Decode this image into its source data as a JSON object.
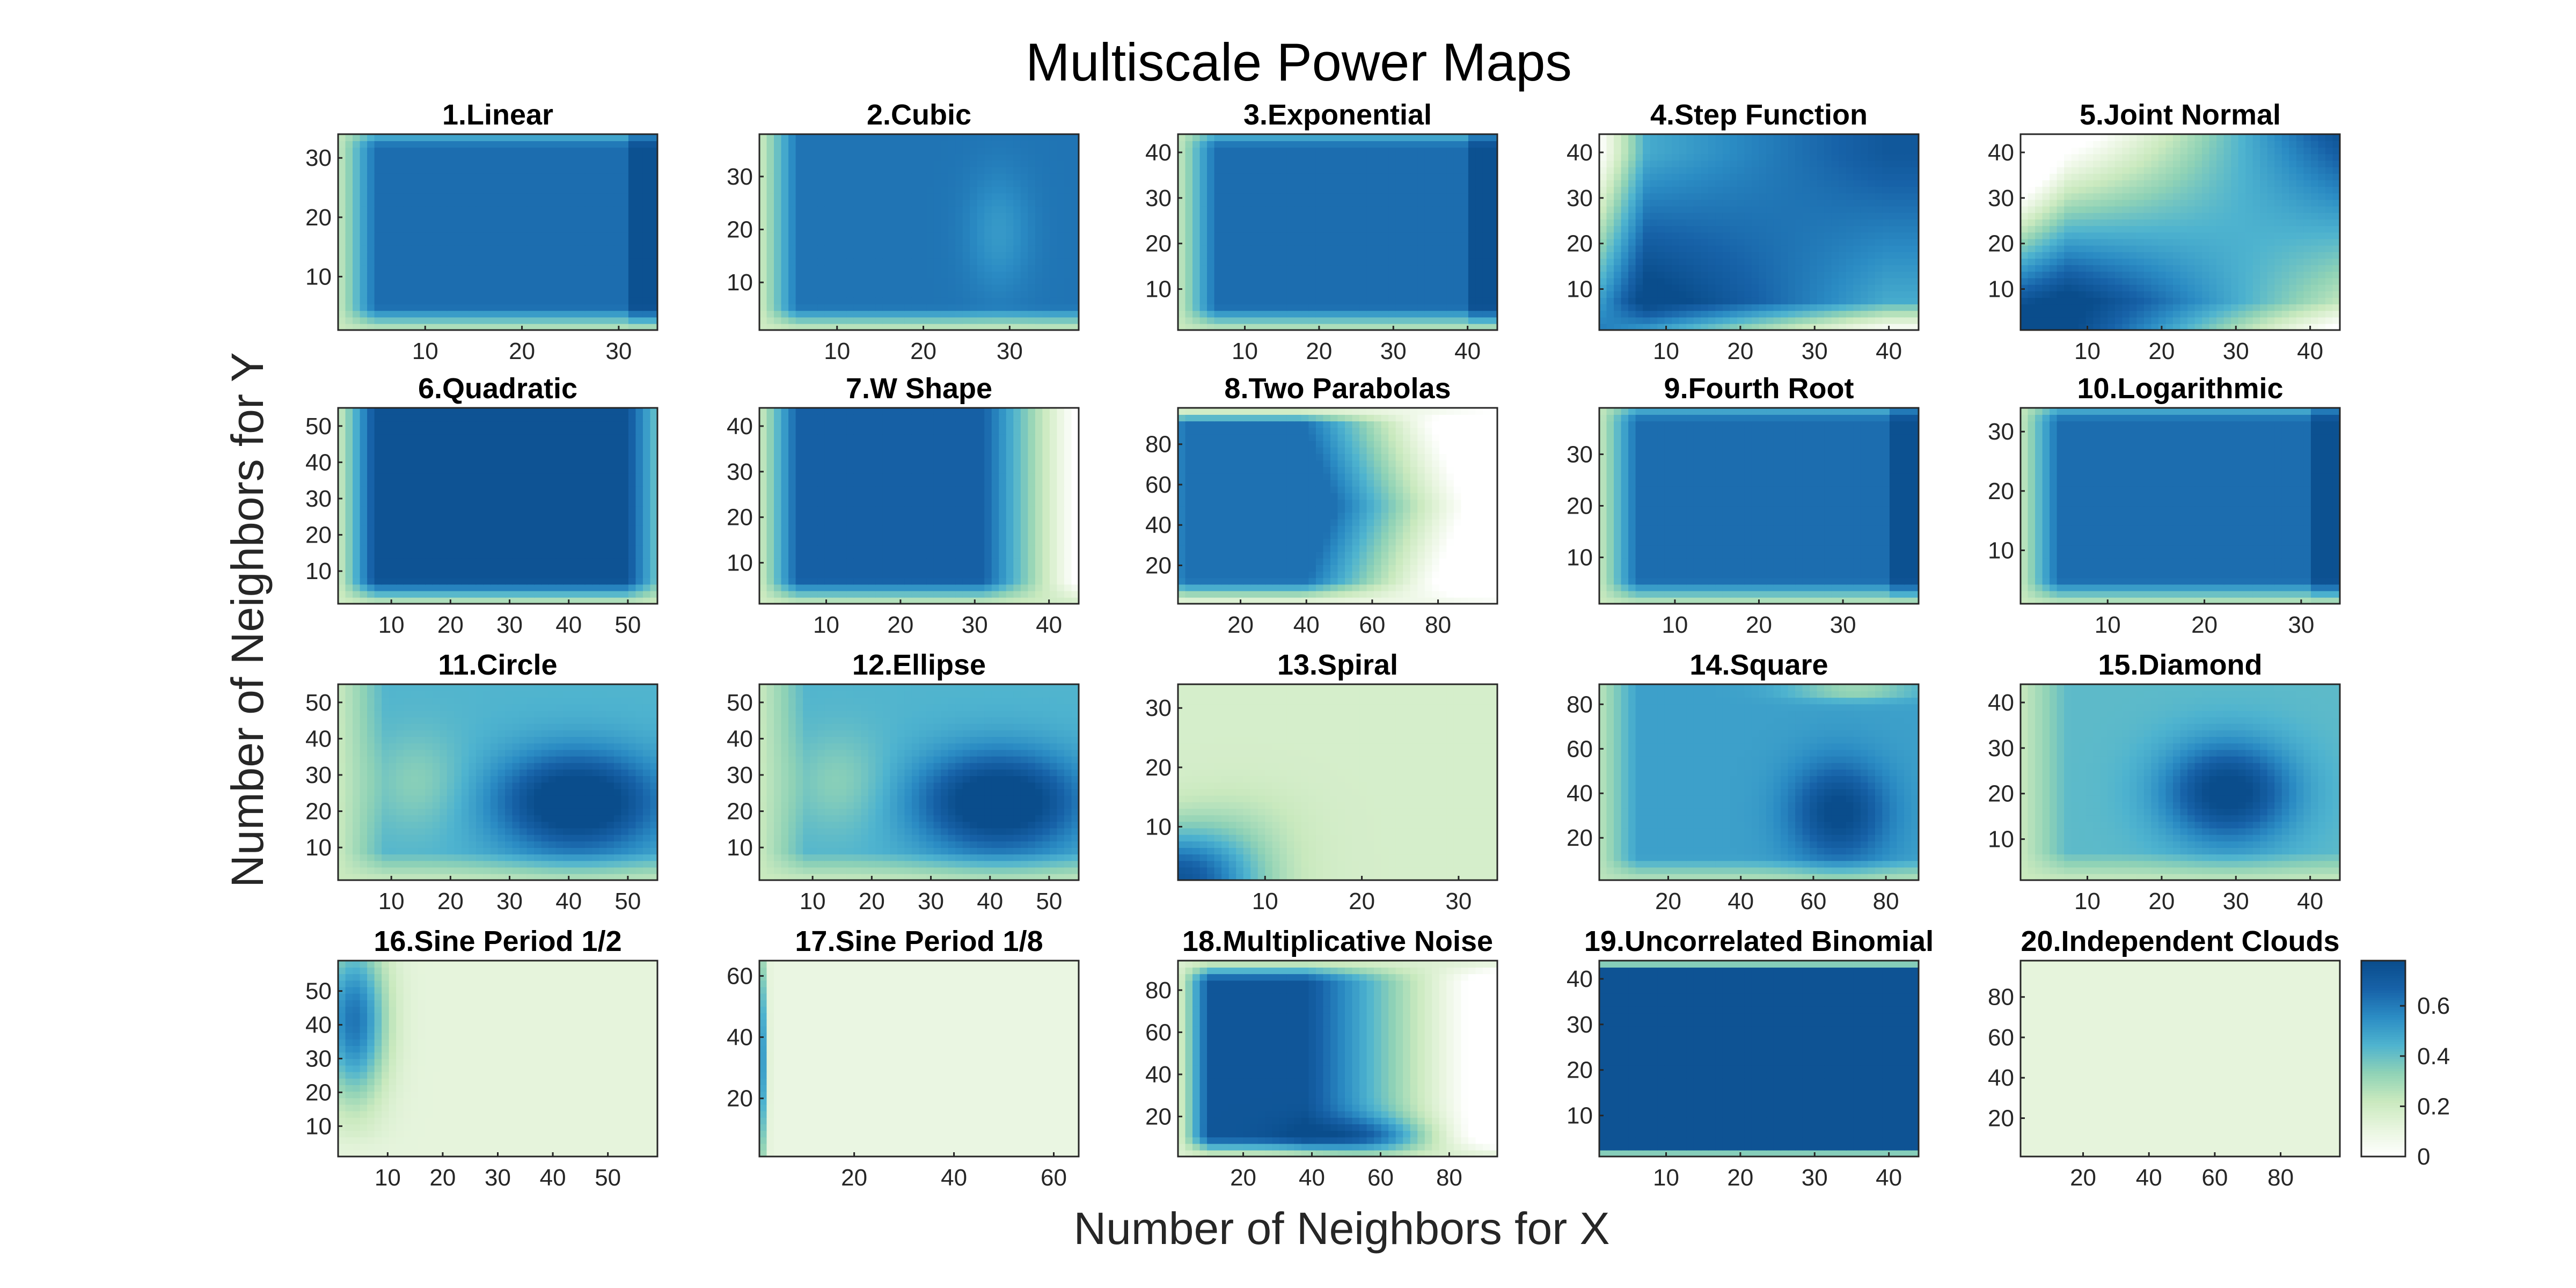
{
  "figure": {
    "title": "Multiscale Power Maps",
    "xlabel": "Number of Neighbors for X",
    "ylabel": "Number of Neighbors for Y"
  },
  "colors": {
    "colormap": [
      "#ffffff",
      "#e8f5df",
      "#c9e9be",
      "#8fd2b6",
      "#4eb3cf",
      "#2b8cc4",
      "#1762a8",
      "#0a4d8c"
    ],
    "frame": "#262626"
  },
  "colorbar": {
    "ticks": [
      0,
      0.2,
      0.4,
      0.6
    ],
    "labels": [
      "0",
      "0.2",
      "0.4",
      "0.6"
    ],
    "range": [
      0,
      0.78
    ]
  },
  "chart_data": [
    {
      "type": "heatmap",
      "title": "1.Linear",
      "xlim": [
        1,
        34
      ],
      "ylim": [
        1,
        34
      ],
      "xticks": [
        10,
        20,
        30
      ],
      "yticks": [
        10,
        20,
        30
      ],
      "pattern": "smooth"
    },
    {
      "type": "heatmap",
      "title": "2.Cubic",
      "xlim": [
        1,
        38
      ],
      "ylim": [
        1,
        38
      ],
      "xticks": [
        10,
        20,
        30
      ],
      "yticks": [
        10,
        20,
        30
      ],
      "pattern": "cubic"
    },
    {
      "type": "heatmap",
      "title": "3.Exponential",
      "xlim": [
        1,
        44
      ],
      "ylim": [
        1,
        44
      ],
      "xticks": [
        10,
        20,
        30,
        40
      ],
      "yticks": [
        10,
        20,
        30,
        40
      ],
      "pattern": "smooth"
    },
    {
      "type": "heatmap",
      "title": "4.Step Function",
      "xlim": [
        1,
        44
      ],
      "ylim": [
        1,
        44
      ],
      "xticks": [
        10,
        20,
        30,
        40
      ],
      "yticks": [
        10,
        20,
        30,
        40
      ],
      "pattern": "step"
    },
    {
      "type": "heatmap",
      "title": "5.Joint Normal",
      "xlim": [
        1,
        44
      ],
      "ylim": [
        1,
        44
      ],
      "xticks": [
        10,
        20,
        30,
        40
      ],
      "yticks": [
        10,
        20,
        30,
        40
      ],
      "pattern": "joint"
    },
    {
      "type": "heatmap",
      "title": "6.Quadratic",
      "xlim": [
        1,
        55
      ],
      "ylim": [
        1,
        55
      ],
      "xticks": [
        10,
        20,
        30,
        40,
        50
      ],
      "yticks": [
        10,
        20,
        30,
        40,
        50
      ],
      "pattern": "quadratic"
    },
    {
      "type": "heatmap",
      "title": "7.W Shape",
      "xlim": [
        1,
        44
      ],
      "ylim": [
        1,
        44
      ],
      "xticks": [
        10,
        20,
        30,
        40
      ],
      "yticks": [
        10,
        20,
        30,
        40
      ],
      "pattern": "wshape"
    },
    {
      "type": "heatmap",
      "title": "8.Two Parabolas",
      "xlim": [
        1,
        98
      ],
      "ylim": [
        1,
        98
      ],
      "xticks": [
        20,
        40,
        60,
        80
      ],
      "yticks": [
        20,
        40,
        60,
        80
      ],
      "pattern": "parabolas"
    },
    {
      "type": "heatmap",
      "title": "9.Fourth Root",
      "xlim": [
        1,
        39
      ],
      "ylim": [
        1,
        39
      ],
      "xticks": [
        10,
        20,
        30
      ],
      "yticks": [
        10,
        20,
        30
      ],
      "pattern": "smooth"
    },
    {
      "type": "heatmap",
      "title": "10.Logarithmic",
      "xlim": [
        1,
        34
      ],
      "ylim": [
        1,
        34
      ],
      "xticks": [
        10,
        20,
        30
      ],
      "yticks": [
        10,
        20,
        30
      ],
      "pattern": "smooth"
    },
    {
      "type": "heatmap",
      "title": "11.Circle",
      "xlim": [
        1,
        55
      ],
      "ylim": [
        1,
        55
      ],
      "xticks": [
        10,
        20,
        30,
        40,
        50
      ],
      "yticks": [
        10,
        20,
        30,
        40,
        50
      ],
      "pattern": "circle"
    },
    {
      "type": "heatmap",
      "title": "12.Ellipse",
      "xlim": [
        1,
        55
      ],
      "ylim": [
        1,
        55
      ],
      "xticks": [
        10,
        20,
        30,
        40,
        50
      ],
      "yticks": [
        10,
        20,
        30,
        40,
        50
      ],
      "pattern": "circle"
    },
    {
      "type": "heatmap",
      "title": "13.Spiral",
      "xlim": [
        1,
        34
      ],
      "ylim": [
        1,
        34
      ],
      "xticks": [
        10,
        20,
        30
      ],
      "yticks": [
        10,
        20,
        30
      ],
      "pattern": "spiral"
    },
    {
      "type": "heatmap",
      "title": "14.Square",
      "xlim": [
        1,
        89
      ],
      "ylim": [
        1,
        89
      ],
      "xticks": [
        20,
        40,
        60,
        80
      ],
      "yticks": [
        20,
        40,
        60,
        80
      ],
      "pattern": "square"
    },
    {
      "type": "heatmap",
      "title": "15.Diamond",
      "xlim": [
        1,
        44
      ],
      "ylim": [
        1,
        44
      ],
      "xticks": [
        10,
        20,
        30,
        40
      ],
      "yticks": [
        10,
        20,
        30,
        40
      ],
      "pattern": "diamond"
    },
    {
      "type": "heatmap",
      "title": "16.Sine Period 1/2",
      "xlim": [
        1,
        59
      ],
      "ylim": [
        1,
        59
      ],
      "xticks": [
        10,
        20,
        30,
        40,
        50
      ],
      "yticks": [
        10,
        20,
        30,
        40,
        50
      ],
      "pattern": "sine2"
    },
    {
      "type": "heatmap",
      "title": "17.Sine Period 1/8",
      "xlim": [
        1,
        65
      ],
      "ylim": [
        1,
        65
      ],
      "xticks": [
        20,
        40,
        60
      ],
      "yticks": [
        20,
        40,
        60
      ],
      "pattern": "sine8"
    },
    {
      "type": "heatmap",
      "title": "18.Multiplicative Noise",
      "xlim": [
        1,
        94
      ],
      "ylim": [
        1,
        94
      ],
      "xticks": [
        20,
        40,
        60,
        80
      ],
      "yticks": [
        20,
        40,
        60,
        80
      ],
      "pattern": "multnoise"
    },
    {
      "type": "heatmap",
      "title": "19.Uncorrelated Binomial",
      "xlim": [
        1,
        44
      ],
      "ylim": [
        1,
        44
      ],
      "xticks": [
        10,
        20,
        30,
        40
      ],
      "yticks": [
        10,
        20,
        30,
        40
      ],
      "pattern": "binomial"
    },
    {
      "type": "heatmap",
      "title": "20.Independent Clouds",
      "xlim": [
        1,
        98
      ],
      "ylim": [
        1,
        98
      ],
      "xticks": [
        20,
        40,
        60,
        80
      ],
      "yticks": [
        20,
        40,
        60,
        80
      ],
      "pattern": "clouds"
    }
  ]
}
